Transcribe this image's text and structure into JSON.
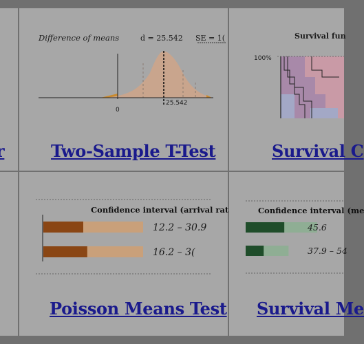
{
  "colors": {
    "background": "#707070",
    "cell": "#a7a7a7",
    "link": "#1a1a8c",
    "bell_fill": "#c9a58d",
    "tail_orange": "#c98a2e",
    "poisson_dark": "#8a4614",
    "poisson_light": "#c9a07a",
    "survival_dark": "#1f4d2a",
    "survival_light": "#8fae94",
    "survival_purple": "#a889a9",
    "survival_pink": "#c99aa6",
    "survival_blue": "#a3a8c6"
  },
  "cells": {
    "left_top": {
      "link_fragment": "r"
    },
    "ttest": {
      "link": "Two-Sample T-Test",
      "chart_title": "Difference of means",
      "d_label": "d = 25.542",
      "se_label": "SE = 1(",
      "zero_tick": "0",
      "d_tick": "25.542"
    },
    "survival_curve": {
      "link": "Survival C",
      "chart_title": "Survival fun",
      "y_tick": "100%"
    },
    "poisson": {
      "link": "Poisson Means Test",
      "ci_title": "Confidence interval (arrival rat",
      "ci_rows": [
        {
          "label": "12.2 – 30.9",
          "dark_fraction": 0.4,
          "total_fraction": 1.0
        },
        {
          "label": "16.2 – 3(",
          "dark_fraction": 0.44,
          "total_fraction": 1.0
        }
      ]
    },
    "survival_means": {
      "link": "Survival Me",
      "ci_title": "Confidence interval (me",
      "ci_rows": [
        {
          "label": "45.6",
          "dark_fraction": 0.54,
          "total_fraction": 1.0
        },
        {
          "label": "37.9 – 54",
          "dark_fraction": 0.42,
          "total_fraction": 0.6
        }
      ]
    }
  }
}
